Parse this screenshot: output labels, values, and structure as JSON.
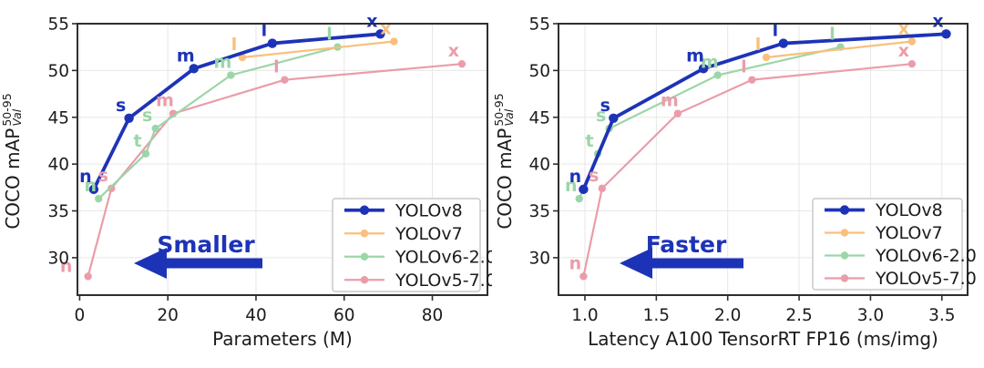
{
  "figure": {
    "background": "#ffffff",
    "text_color": "#1c1c1c",
    "frame_color": "#2e2e2e",
    "grid_color": "#e7e7e7",
    "legend_border_color": "#c9c9c9",
    "accent_blue": "#1d33b7"
  },
  "chart_data": [
    {
      "type": "line",
      "title": "",
      "xlabel": "Parameters (M)",
      "ylabel_prefix": "COCO mAP",
      "ylabel_sup": "50-95",
      "ylabel_sub": "Val",
      "xlim": [
        -0.5,
        92.5
      ],
      "ylim": [
        26.0,
        55.0
      ],
      "xtick_values": [
        0,
        20,
        40,
        60,
        80
      ],
      "xtick_labels": [
        "0",
        "20",
        "40",
        "60",
        "80"
      ],
      "ytick_values": [
        30,
        35,
        40,
        45,
        50,
        55
      ],
      "ytick_labels": [
        "30",
        "35",
        "40",
        "45",
        "50",
        "55"
      ],
      "grid": true,
      "legend_position": "lower right",
      "annotation": {
        "text": "Smaller",
        "color": "#1d33b7",
        "arrow_direction": "left"
      },
      "series": [
        {
          "name": "YOLOv8",
          "color": "#1d33b7",
          "line_width": 3.8,
          "marker_radius": 5.2,
          "points": [
            {
              "label": "n",
              "x": 3.2,
              "y": 37.3
            },
            {
              "label": "s",
              "x": 11.2,
              "y": 44.9
            },
            {
              "label": "m",
              "x": 25.9,
              "y": 50.2
            },
            {
              "label": "l",
              "x": 43.7,
              "y": 52.9
            },
            {
              "label": "x",
              "x": 68.2,
              "y": 53.9
            }
          ]
        },
        {
          "name": "YOLOv7",
          "color": "#f8c07c",
          "line_width": 2.2,
          "marker_radius": 4.2,
          "points": [
            {
              "label": "l",
              "x": 36.9,
              "y": 51.4
            },
            {
              "label": "x",
              "x": 71.3,
              "y": 53.1
            }
          ]
        },
        {
          "name": "YOLOv6-2.0",
          "color": "#9bd6a8",
          "line_width": 2.2,
          "marker_radius": 4.2,
          "points": [
            {
              "label": "n",
              "x": 4.3,
              "y": 36.3
            },
            {
              "label": "t",
              "x": 15.0,
              "y": 41.1
            },
            {
              "label": "s",
              "x": 17.2,
              "y": 43.8
            },
            {
              "label": "m",
              "x": 34.3,
              "y": 49.5
            },
            {
              "label": "l",
              "x": 58.5,
              "y": 52.5
            }
          ]
        },
        {
          "name": "YOLOv5-7.0",
          "color": "#ea9da9",
          "line_width": 2.2,
          "marker_radius": 4.2,
          "points": [
            {
              "label": "n",
              "x": 1.9,
              "y": 28.0,
              "dx": -24,
              "dy": -5
            },
            {
              "label": "s",
              "x": 7.2,
              "y": 37.4
            },
            {
              "label": "m",
              "x": 21.2,
              "y": 45.4
            },
            {
              "label": "l",
              "x": 46.5,
              "y": 49.0
            },
            {
              "label": "x",
              "x": 86.7,
              "y": 50.7
            }
          ]
        }
      ]
    },
    {
      "type": "line",
      "title": "",
      "xlabel": "Latency A100 TensorRT FP16 (ms/img)",
      "ylabel_prefix": "COCO mAP",
      "ylabel_sup": "50-95",
      "ylabel_sub": "Val",
      "xlim": [
        0.815,
        3.68
      ],
      "ylim": [
        26.0,
        55.0
      ],
      "xtick_values": [
        1.0,
        1.5,
        2.0,
        2.5,
        3.0,
        3.5
      ],
      "xtick_labels": [
        "1.0",
        "1.5",
        "2.0",
        "2.5",
        "3.0",
        "3.5"
      ],
      "ytick_values": [
        30,
        35,
        40,
        45,
        50,
        55
      ],
      "ytick_labels": [
        "30",
        "35",
        "40",
        "45",
        "50",
        "55"
      ],
      "grid": true,
      "legend_position": "lower right",
      "annotation": {
        "text": "Faster",
        "color": "#1d33b7",
        "arrow_direction": "left"
      },
      "series": [
        {
          "name": "YOLOv8",
          "color": "#1d33b7",
          "line_width": 3.8,
          "marker_radius": 5.2,
          "points": [
            {
              "label": "n",
              "x": 0.99,
              "y": 37.3
            },
            {
              "label": "s",
              "x": 1.2,
              "y": 44.9
            },
            {
              "label": "m",
              "x": 1.83,
              "y": 50.2
            },
            {
              "label": "l",
              "x": 2.39,
              "y": 52.9
            },
            {
              "label": "x",
              "x": 3.53,
              "y": 53.9
            }
          ]
        },
        {
          "name": "YOLOv7",
          "color": "#f8c07c",
          "line_width": 2.2,
          "marker_radius": 4.2,
          "points": [
            {
              "label": "l",
              "x": 2.27,
              "y": 51.4
            },
            {
              "label": "x",
              "x": 3.29,
              "y": 53.1
            }
          ]
        },
        {
          "name": "YOLOv6-2.0",
          "color": "#9bd6a8",
          "line_width": 2.2,
          "marker_radius": 4.2,
          "points": [
            {
              "label": "n",
              "x": 0.96,
              "y": 36.3
            },
            {
              "label": "t",
              "x": 1.09,
              "y": 41.1
            },
            {
              "label": "s",
              "x": 1.17,
              "y": 43.8
            },
            {
              "label": "m",
              "x": 1.93,
              "y": 49.5
            },
            {
              "label": "l",
              "x": 2.79,
              "y": 52.5
            }
          ]
        },
        {
          "name": "YOLOv5-7.0",
          "color": "#ea9da9",
          "line_width": 2.2,
          "marker_radius": 4.2,
          "points": [
            {
              "label": "n",
              "x": 0.99,
              "y": 28.0
            },
            {
              "label": "s",
              "x": 1.12,
              "y": 37.4
            },
            {
              "label": "m",
              "x": 1.65,
              "y": 45.4
            },
            {
              "label": "l",
              "x": 2.17,
              "y": 49.0
            },
            {
              "label": "x",
              "x": 3.29,
              "y": 50.7
            }
          ]
        }
      ]
    }
  ]
}
